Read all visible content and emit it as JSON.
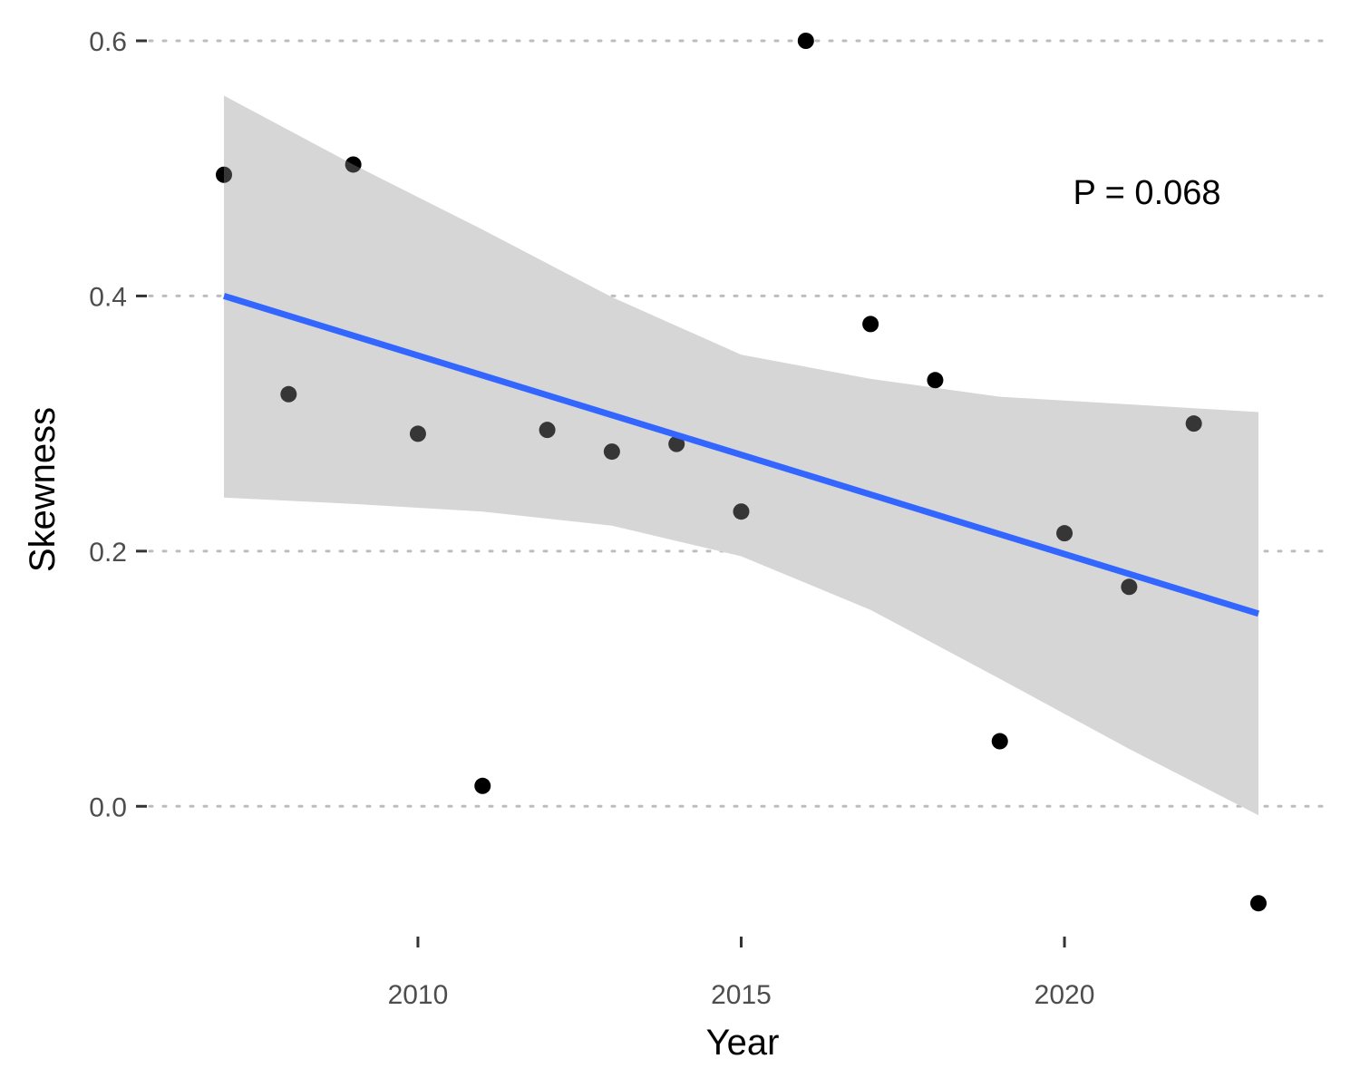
{
  "chart_data": {
    "type": "scatter",
    "title": "",
    "xlabel": "Year",
    "ylabel": "Skewness",
    "xlim": [
      2005.85,
      2024.15
    ],
    "ylim": [
      -0.1,
      0.6
    ],
    "x_ticks": [
      2010,
      2015,
      2020
    ],
    "y_ticks": [
      0.0,
      0.2,
      0.4,
      0.6
    ],
    "x_tick_labels": [
      "2010",
      "2015",
      "2020"
    ],
    "y_tick_labels": [
      "0.0",
      "0.2",
      "0.4",
      "0.6"
    ],
    "grid": "horizontal-dotted",
    "annotation": "P = 0.068",
    "points": {
      "x": [
        2007,
        2008,
        2009,
        2010,
        2011,
        2012,
        2013,
        2014,
        2015,
        2016,
        2017,
        2018,
        2019,
        2020,
        2021,
        2022,
        2023
      ],
      "y": [
        0.495,
        0.323,
        0.503,
        0.292,
        0.016,
        0.295,
        0.278,
        0.284,
        0.231,
        0.6,
        0.378,
        0.334,
        0.051,
        0.214,
        0.172,
        0.3,
        -0.076
      ]
    },
    "trend": {
      "x": [
        2007,
        2023
      ],
      "y": [
        0.4,
        0.151
      ]
    },
    "confidence_band": {
      "x": [
        2007,
        2009,
        2011,
        2013,
        2015,
        2017,
        2019,
        2021,
        2023
      ],
      "lower": [
        0.242,
        0.237,
        0.231,
        0.22,
        0.196,
        0.154,
        0.1,
        0.045,
        -0.007
      ],
      "upper": [
        0.557,
        0.503,
        0.452,
        0.399,
        0.354,
        0.335,
        0.321,
        0.315,
        0.309
      ]
    },
    "colors": {
      "line": "#3366ff",
      "band": "#d6d6d6",
      "points": "#000000",
      "grid": "#bdbdbd"
    }
  }
}
